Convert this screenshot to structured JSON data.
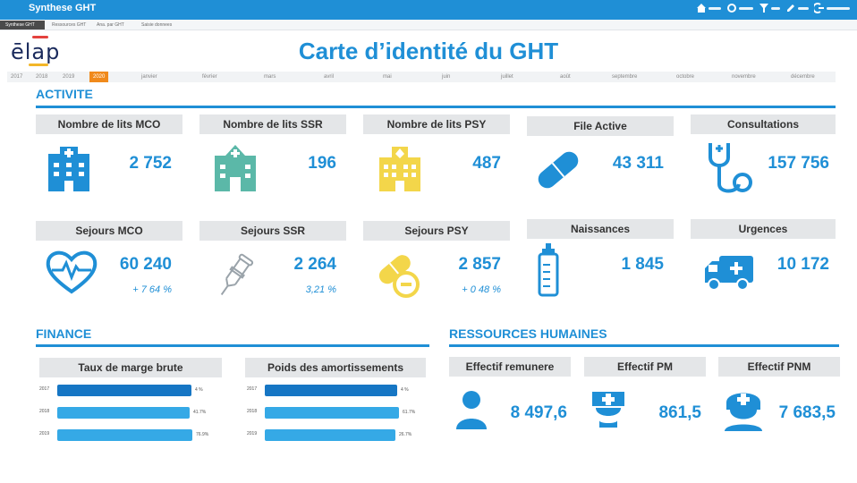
{
  "app": {
    "title": "Synthese GHT",
    "actions": [
      "home-icon",
      "refresh-icon",
      "filter-icon",
      "edit-icon",
      "logout-icon"
    ]
  },
  "tabs": [
    {
      "label": "Synthese GHT",
      "active": true
    },
    {
      "label": "Ressources GHT",
      "active": false
    },
    {
      "label": "Ana. par GHT",
      "active": false
    },
    {
      "label": "Saisie donnees",
      "active": false
    }
  ],
  "logo": {
    "text": "ēlap"
  },
  "page_title": "Carte d’identité du GHT",
  "timeline": {
    "years": [
      "2017",
      "2018",
      "2019",
      "2020"
    ],
    "active_year": "2020",
    "months": [
      "janvier",
      "février",
      "mars",
      "avril",
      "mai",
      "juin",
      "juillet",
      "août",
      "septembre",
      "octobre",
      "novembre",
      "décembre"
    ]
  },
  "activite": {
    "title": "ACTIVITE",
    "cards": [
      {
        "label": "Nombre de lits MCO",
        "value": "2 752",
        "icon": "hospital-icon"
      },
      {
        "label": "Nombre de lits SSR",
        "value": "196",
        "icon": "hospital-ssr-icon"
      },
      {
        "label": "Nombre de lits PSY",
        "value": "487",
        "icon": "hospital-psy-icon"
      },
      {
        "label": "File Active",
        "value": "43 311",
        "icon": "pill-icon"
      },
      {
        "label": "Consultations",
        "value": "157 756",
        "icon": "stethoscope-icon"
      },
      {
        "label": "Sejours MCO",
        "value": "60 240",
        "sub": "+ 7 64 %",
        "icon": "heart-pulse-icon"
      },
      {
        "label": "Sejours SSR",
        "value": "2 264",
        "sub": "3,21 %",
        "icon": "crutch-icon"
      },
      {
        "label": "Sejours PSY",
        "value": "2 857",
        "sub": "+ 0 48 %",
        "icon": "pills-icon"
      },
      {
        "label": "Naissances",
        "value": "1 845",
        "icon": "baby-bottle-icon"
      },
      {
        "label": "Urgences",
        "value": "10 172",
        "icon": "ambulance-icon"
      }
    ]
  },
  "finance": {
    "title": "FINANCE",
    "charts": [
      {
        "label": "Taux de marge brute",
        "rows": [
          {
            "year": "2017",
            "value": "4 %",
            "fill": 0.85
          },
          {
            "year": "2018",
            "value": "41.7%",
            "fill": 0.84
          },
          {
            "year": "2019",
            "value": "76.9%",
            "fill": 0.86
          }
        ]
      },
      {
        "label": "Poids des amortissements",
        "rows": [
          {
            "year": "2017",
            "value": "4 %",
            "fill": 0.84
          },
          {
            "year": "2018",
            "value": "61.7%",
            "fill": 0.85
          },
          {
            "year": "2019",
            "value": "26.7%",
            "fill": 0.83
          }
        ]
      }
    ]
  },
  "rh": {
    "title": "RESSOURCES HUMAINES",
    "cards": [
      {
        "label": "Effectif remunere",
        "value": "8 497,6",
        "icon": "person-icon"
      },
      {
        "label": "Effectif PM",
        "value": "861,5",
        "icon": "doctor-icon"
      },
      {
        "label": "Effectif PNM",
        "value": "7 683,5",
        "icon": "nurse-icon"
      }
    ]
  },
  "colors": {
    "accent": "#1f8fd6",
    "yellow": "#f3d64a",
    "teal": "#5bb8a8",
    "orange": "#f08a1c",
    "bar_dark": "#1676c4",
    "bar_light": "#35a9e6"
  }
}
